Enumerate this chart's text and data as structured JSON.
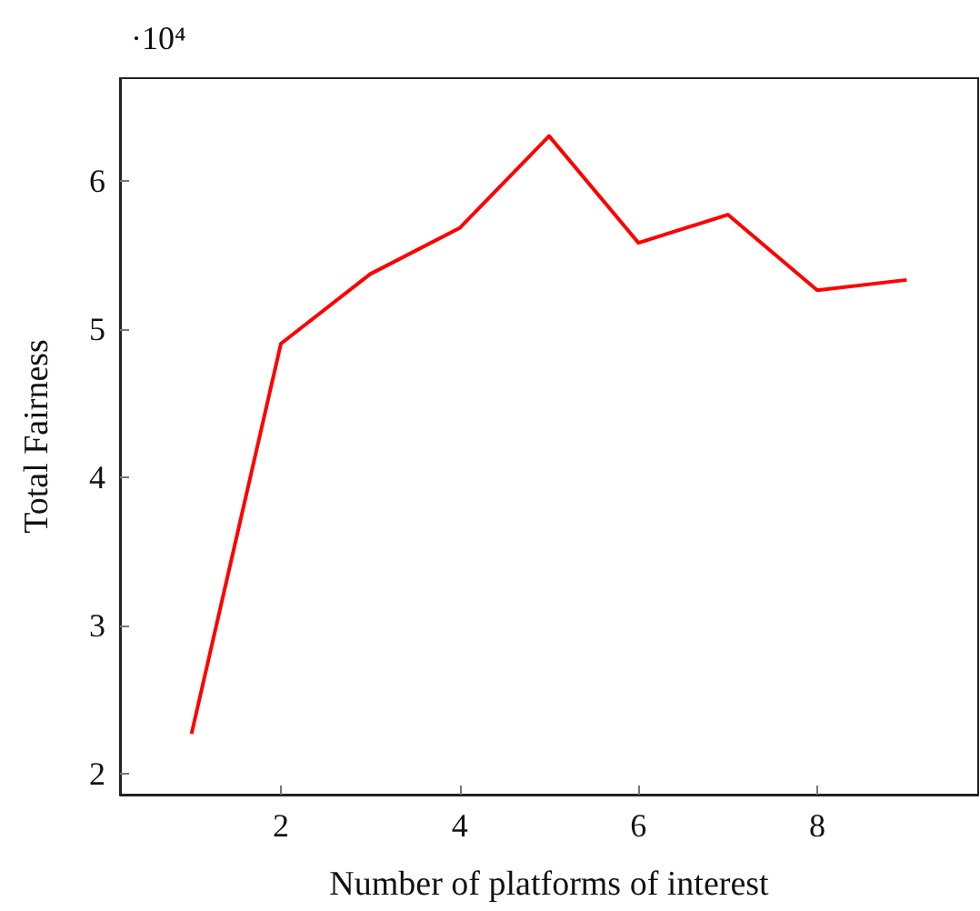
{
  "chart_data": {
    "type": "line",
    "xlabel": "Number of platforms of interest",
    "ylabel": "Total Fairness",
    "annotations": [
      "·10⁴"
    ],
    "x": [
      1,
      2,
      3,
      4,
      5,
      6,
      7,
      8,
      9
    ],
    "series": [
      {
        "color": "#ff0000",
        "values": [
          2.27,
          4.9,
          5.37,
          5.68,
          6.3,
          5.58,
          5.77,
          5.26,
          5.33
        ]
      }
    ],
    "xlim": [
      0.2,
      9.8
    ],
    "xticks": [
      2,
      4,
      6,
      8
    ],
    "ylim": [
      1.86,
      6.69
    ],
    "yticks": [
      2,
      3,
      4,
      5,
      6
    ],
    "grid": false,
    "marker": "none",
    "line_style": "solid"
  }
}
